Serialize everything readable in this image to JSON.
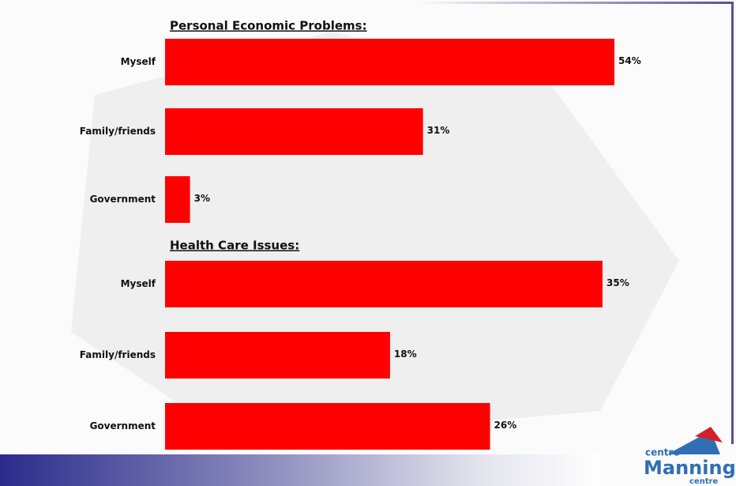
{
  "chart_data": [
    {
      "type": "bar",
      "title": "Personal Economic Problems:",
      "categories": [
        "Myself",
        "Family/friends",
        "Government"
      ],
      "values": [
        54,
        31,
        3
      ],
      "value_labels": [
        "54%",
        "31%",
        "3%"
      ],
      "color": "#ff0000"
    },
    {
      "type": "bar",
      "title": "Health Care Issues:",
      "categories": [
        "Myself",
        "Family/friends",
        "Government"
      ],
      "values": [
        35,
        18,
        26
      ],
      "value_labels": [
        "35%",
        "18%",
        "26%"
      ],
      "color": "#ff0000"
    }
  ],
  "logo": {
    "top": "centre",
    "name": "Manning",
    "bottom": "centre"
  }
}
